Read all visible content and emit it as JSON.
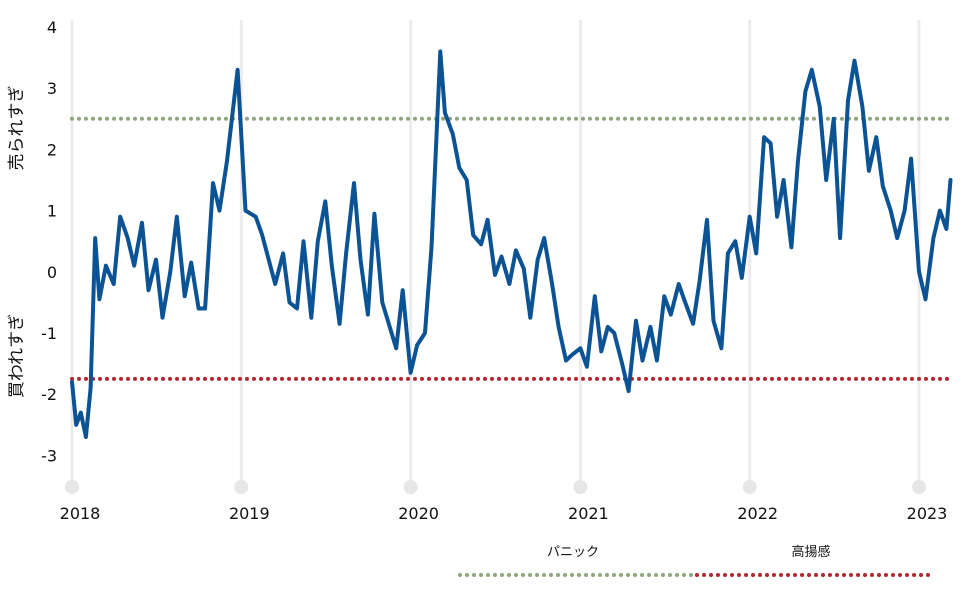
{
  "chart_data": {
    "type": "line",
    "ylim": [
      -3.5,
      4
    ],
    "xlim": [
      "2018-01-01",
      "2023-03-15"
    ],
    "y_ticks": [
      4,
      3,
      2,
      1,
      0,
      -1,
      -2,
      -3
    ],
    "x_ticks": [
      "2018",
      "2019",
      "2020",
      "2021",
      "2022",
      "2023"
    ],
    "y_label_upper": "売られすぎ",
    "y_label_lower": "買われすぎ",
    "grid": "vertical",
    "reference_lines": [
      {
        "name": "パニック",
        "value": 2.5,
        "color": "#8da57a",
        "style": "dotted"
      },
      {
        "name": "高揚感",
        "value": -1.75,
        "color": "#b3262e",
        "style": "dotted"
      }
    ],
    "legend_position": "bottom-right",
    "series": [
      {
        "color": "#0b5394",
        "x": [
          "2018-01-01",
          "2018-01-10",
          "2018-01-20",
          "2018-01-31",
          "2018-02-10",
          "2018-02-20",
          "2018-03-01",
          "2018-03-15",
          "2018-04-01",
          "2018-04-15",
          "2018-05-01",
          "2018-05-15",
          "2018-06-01",
          "2018-06-15",
          "2018-07-01",
          "2018-07-15",
          "2018-08-01",
          "2018-08-15",
          "2018-09-01",
          "2018-09-15",
          "2018-10-01",
          "2018-10-15",
          "2018-11-01",
          "2018-11-15",
          "2018-12-01",
          "2018-12-24",
          "2019-01-10",
          "2019-02-01",
          "2019-02-15",
          "2019-03-01",
          "2019-03-15",
          "2019-04-01",
          "2019-04-15",
          "2019-05-01",
          "2019-05-15",
          "2019-06-01",
          "2019-06-15",
          "2019-07-01",
          "2019-07-15",
          "2019-08-01",
          "2019-08-15",
          "2019-09-01",
          "2019-09-15",
          "2019-10-01",
          "2019-10-15",
          "2019-11-01",
          "2019-11-15",
          "2019-12-01",
          "2019-12-15",
          "2020-01-01",
          "2020-01-15",
          "2020-02-01",
          "2020-02-15",
          "2020-03-05",
          "2020-03-15",
          "2020-04-01",
          "2020-04-15",
          "2020-05-01",
          "2020-05-15",
          "2020-06-01",
          "2020-06-15",
          "2020-07-01",
          "2020-07-15",
          "2020-08-01",
          "2020-08-15",
          "2020-09-01",
          "2020-09-15",
          "2020-10-01",
          "2020-10-15",
          "2020-11-01",
          "2020-11-15",
          "2020-12-01",
          "2020-12-15",
          "2021-01-01",
          "2021-01-15",
          "2021-02-01",
          "2021-02-15",
          "2021-03-01",
          "2021-03-15",
          "2021-04-01",
          "2021-04-15",
          "2021-05-01",
          "2021-05-15",
          "2021-06-01",
          "2021-06-15",
          "2021-07-01",
          "2021-07-15",
          "2021-08-01",
          "2021-08-15",
          "2021-09-01",
          "2021-09-15",
          "2021-10-01",
          "2021-10-15",
          "2021-11-01",
          "2021-11-15",
          "2021-12-01",
          "2021-12-15",
          "2022-01-01",
          "2022-01-15",
          "2022-02-01",
          "2022-02-15",
          "2022-03-01",
          "2022-03-15",
          "2022-04-01",
          "2022-04-15",
          "2022-05-01",
          "2022-05-15",
          "2022-06-01",
          "2022-06-15",
          "2022-07-01",
          "2022-07-15",
          "2022-08-01",
          "2022-08-15",
          "2022-09-01",
          "2022-09-15",
          "2022-10-01",
          "2022-10-15",
          "2022-11-01",
          "2022-11-15",
          "2022-12-01",
          "2022-12-15",
          "2023-01-01",
          "2023-01-15",
          "2023-02-01",
          "2023-02-15",
          "2023-03-01",
          "2023-03-10"
        ],
        "values": [
          -1.8,
          -2.5,
          -2.3,
          -2.7,
          -1.9,
          0.55,
          -0.45,
          0.1,
          -0.2,
          0.9,
          0.55,
          0.1,
          0.8,
          -0.3,
          0.2,
          -0.75,
          0.0,
          0.9,
          -0.4,
          0.15,
          -0.6,
          -0.6,
          1.45,
          1.0,
          1.8,
          3.3,
          1.0,
          0.9,
          0.6,
          0.2,
          -0.2,
          0.3,
          -0.5,
          -0.6,
          0.5,
          -0.75,
          0.5,
          1.15,
          0.1,
          -0.85,
          0.3,
          1.45,
          0.2,
          -0.7,
          0.95,
          -0.5,
          -0.85,
          -1.25,
          -0.3,
          -1.65,
          -1.2,
          -1.0,
          0.4,
          3.6,
          2.6,
          2.25,
          1.7,
          1.5,
          0.6,
          0.45,
          0.85,
          -0.05,
          0.25,
          -0.2,
          0.35,
          0.05,
          -0.75,
          0.2,
          0.55,
          -0.2,
          -0.9,
          -1.45,
          -1.35,
          -1.25,
          -1.55,
          -0.4,
          -1.3,
          -0.9,
          -1.0,
          -1.5,
          -1.95,
          -0.8,
          -1.45,
          -0.9,
          -1.45,
          -0.4,
          -0.7,
          -0.2,
          -0.5,
          -0.85,
          -0.15,
          0.85,
          -0.8,
          -1.25,
          0.3,
          0.5,
          -0.1,
          0.9,
          0.3,
          2.2,
          2.1,
          0.9,
          1.5,
          0.4,
          1.8,
          2.95,
          3.3,
          2.7,
          1.5,
          2.5,
          0.55,
          2.8,
          3.45,
          2.7,
          1.65,
          2.2,
          1.4,
          1.0,
          0.55,
          1.0,
          1.85,
          0.0,
          -0.45,
          0.55,
          1.0,
          0.7,
          1.5
        ]
      }
    ]
  }
}
